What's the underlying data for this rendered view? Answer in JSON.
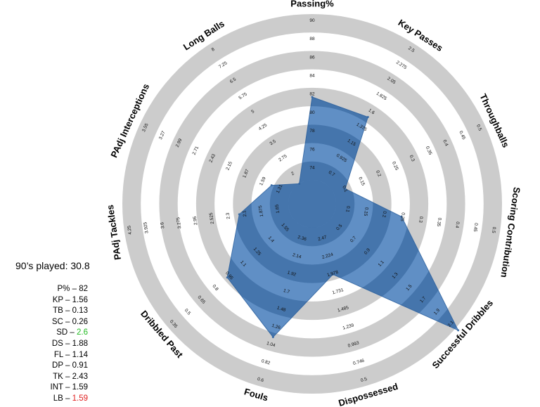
{
  "summary": {
    "played_label": "90’s played: 30.8",
    "rows": [
      {
        "key": "P%",
        "value": "82",
        "color": ""
      },
      {
        "key": "KP",
        "value": "1.56",
        "color": ""
      },
      {
        "key": "TB",
        "value": "0.13",
        "color": ""
      },
      {
        "key": "SC",
        "value": "0.26",
        "color": ""
      },
      {
        "key": "SD",
        "value": "2.6",
        "color": "#22bb22"
      },
      {
        "key": "DS",
        "value": "1.88",
        "color": ""
      },
      {
        "key": "FL",
        "value": "1.14",
        "color": ""
      },
      {
        "key": "DP",
        "value": "0.91",
        "color": ""
      },
      {
        "key": "TK",
        "value": "2.43",
        "color": ""
      },
      {
        "key": "INT",
        "value": "1.59",
        "color": ""
      },
      {
        "key": "LB",
        "value": "1.59",
        "color": "#e02020"
      }
    ]
  },
  "chart_data": {
    "type": "radar",
    "colors": {
      "fill": "#4a7fbd",
      "rings": "#cccccc",
      "background": "#ffffff"
    },
    "axes": [
      {
        "name": "Passing%",
        "ticks": [
          "74",
          "76",
          "78",
          "80",
          "82",
          "84",
          "86",
          "88",
          "90"
        ],
        "value": 82
      },
      {
        "name": "Key Passes",
        "ticks": [
          "0.7",
          "0.925",
          "1.15",
          "1.375",
          "1.6",
          "1.825",
          "2.05",
          "2.275",
          "2.5"
        ],
        "value": 1.56
      },
      {
        "name": "Throughballs",
        "ticks": [
          "0.1",
          "0.15",
          "0.2",
          "0.25",
          "0.3",
          "0.35",
          "0.4",
          "0.45",
          "0.5"
        ],
        "value": 0.13
      },
      {
        "name": "Scoring Contribution",
        "ticks": [
          "0.1",
          "0.15",
          "0.2",
          "0.25",
          "0.3",
          "0.35",
          "0.4",
          "0.45",
          "0.5"
        ],
        "value": 0.26
      },
      {
        "name": "Successful Dribbles",
        "ticks": [
          "0.5",
          "0.7",
          "0.9",
          "1.1",
          "1.3",
          "1.5",
          "1.7",
          "1.9",
          "2.1"
        ],
        "value": 2.6
      },
      {
        "name": "Dispossessed",
        "ticks": [
          "2.47",
          "2.224",
          "1.978",
          "1.731",
          "1.485",
          "1.239",
          "0.993",
          "0.746",
          "0.5"
        ],
        "value": 1.88
      },
      {
        "name": "Fouls",
        "ticks": [
          "2.36",
          "2.14",
          "1.92",
          "1.7",
          "1.48",
          "1.26",
          "1.04",
          "0.82",
          "0.6"
        ],
        "value": 1.14
      },
      {
        "name": "Dribbled Past",
        "ticks": [
          "1.55",
          "1.4",
          "1.25",
          "1.1",
          "0.95",
          "0.8",
          "0.65",
          "0.5",
          "0.35"
        ],
        "value": 0.91
      },
      {
        "name": "PAdj Tackles",
        "ticks": [
          "1.65",
          "1.875",
          "2.1",
          "2.3",
          "2.525",
          "2.95",
          "3.275",
          "3.6",
          "3.925",
          "4.25"
        ],
        "value": 2.43
      },
      {
        "name": "PAdj Interceptions",
        "ticks": [
          "1.31",
          "1.59",
          "1.87",
          "2.15",
          "2.43",
          "2.71",
          "2.99",
          "3.27",
          "3.55"
        ],
        "value": 1.59
      },
      {
        "name": "Long Balls",
        "ticks": [
          "2",
          "2.75",
          "3.5",
          "4.25",
          "5",
          "5.75",
          "6.5",
          "7.25",
          "8"
        ],
        "value": 1.59
      }
    ],
    "ranges": [
      [
        74,
        90
      ],
      [
        0.7,
        2.5
      ],
      [
        0.1,
        0.5
      ],
      [
        0.1,
        0.5
      ],
      [
        0.5,
        2.1
      ],
      [
        2.47,
        0.5
      ],
      [
        2.36,
        0.6
      ],
      [
        1.55,
        0.35
      ],
      [
        1.65,
        4.25
      ],
      [
        1.31,
        3.55
      ],
      [
        2,
        8
      ]
    ]
  }
}
